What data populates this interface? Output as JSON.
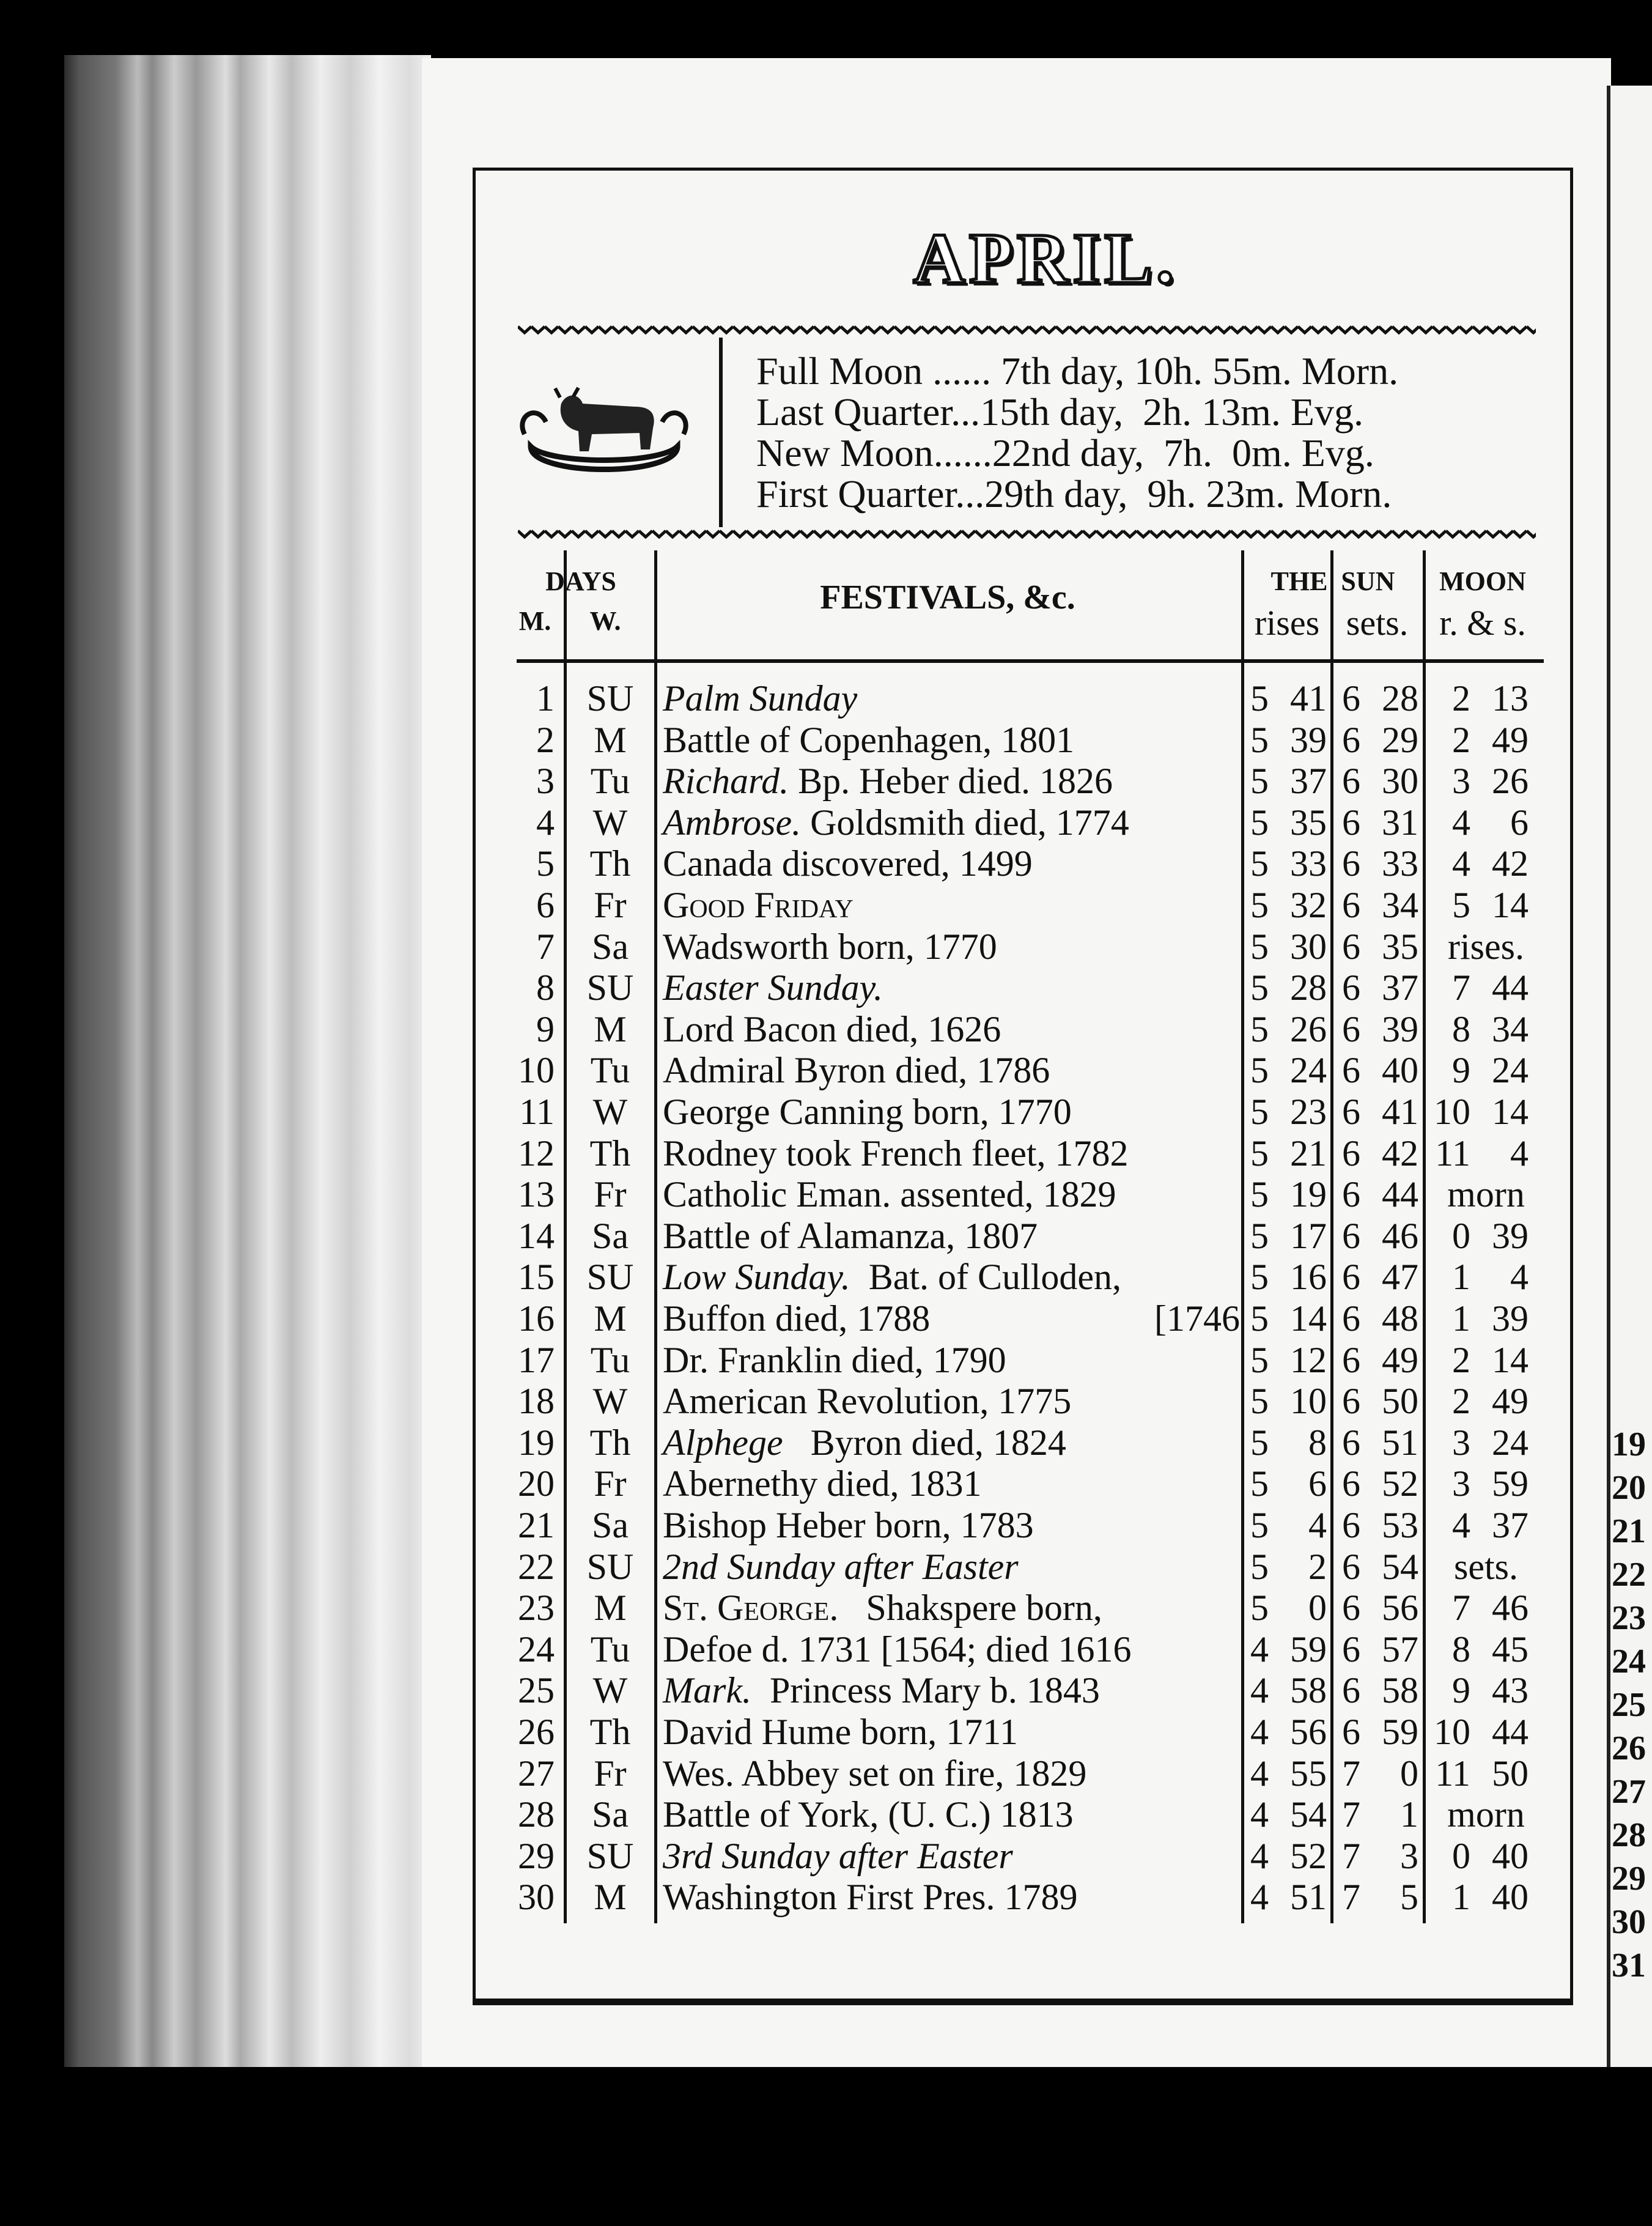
{
  "title": "APRIL.",
  "moon_phases": [
    "Full Moon ...... 7th day, 10h. 55m. Morn.",
    "Last Quarter...15th day,  2h. 13m. Evg.",
    "New Moon......22nd day,  7h.  0m. Evg.",
    "First Quarter...29th day,  9h. 23m. Morn."
  ],
  "headers": {
    "days": "DAYS",
    "m": "M.",
    "w": "W.",
    "festivals": "FESTIVALS, &c.",
    "the_sun": "THE  SUN",
    "rises": "rises",
    "sets": "sets.",
    "moon": "MOON",
    "moon_rs": "r. & s."
  },
  "rows": [
    {
      "m": "1",
      "w": "SU",
      "it": "Palm Sunday",
      "sc": "",
      "t": "",
      "rh": "5",
      "rm": "41",
      "sh": "6",
      "sm": "28",
      "mo": [
        "2",
        "13"
      ]
    },
    {
      "m": "2",
      "w": "M",
      "it": "",
      "sc": "",
      "t": "Battle of Copenhagen, 1801",
      "rh": "5",
      "rm": "39",
      "sh": "6",
      "sm": "29",
      "mo": [
        "2",
        "49"
      ]
    },
    {
      "m": "3",
      "w": "Tu",
      "it": "Richard.",
      "sc": "",
      "t": " Bp. Heber died. 1826",
      "rh": "5",
      "rm": "37",
      "sh": "6",
      "sm": "30",
      "mo": [
        "3",
        "26"
      ]
    },
    {
      "m": "4",
      "w": "W",
      "it": "Ambrose.",
      "sc": "",
      "t": " Goldsmith died, 1774",
      "rh": "5",
      "rm": "35",
      "sh": "6",
      "sm": "31",
      "mo": [
        "4",
        "6"
      ]
    },
    {
      "m": "5",
      "w": "Th",
      "it": "",
      "sc": "",
      "t": "Canada discovered, 1499",
      "rh": "5",
      "rm": "33",
      "sh": "6",
      "sm": "33",
      "mo": [
        "4",
        "42"
      ]
    },
    {
      "m": "6",
      "w": "Fr",
      "it": "",
      "sc": "Good Friday",
      "t": "",
      "rh": "5",
      "rm": "32",
      "sh": "6",
      "sm": "34",
      "mo": [
        "5",
        "14"
      ]
    },
    {
      "m": "7",
      "w": "Sa",
      "it": "",
      "sc": "",
      "t": "Wadsworth born, 1770",
      "rh": "5",
      "rm": "30",
      "sh": "6",
      "sm": "35",
      "mo": [
        "rises."
      ]
    },
    {
      "m": "8",
      "w": "SU",
      "it": "Easter Sunday.",
      "sc": "",
      "t": "",
      "rh": "5",
      "rm": "28",
      "sh": "6",
      "sm": "37",
      "mo": [
        "7",
        "44"
      ]
    },
    {
      "m": "9",
      "w": "M",
      "it": "",
      "sc": "",
      "t": "Lord Bacon died, 1626",
      "rh": "5",
      "rm": "26",
      "sh": "6",
      "sm": "39",
      "mo": [
        "8",
        "34"
      ]
    },
    {
      "m": "10",
      "w": "Tu",
      "it": "",
      "sc": "",
      "t": "Admiral Byron died, 1786",
      "rh": "5",
      "rm": "24",
      "sh": "6",
      "sm": "40",
      "mo": [
        "9",
        "24"
      ]
    },
    {
      "m": "11",
      "w": "W",
      "it": "",
      "sc": "",
      "t": "George Canning born, 1770",
      "rh": "5",
      "rm": "23",
      "sh": "6",
      "sm": "41",
      "mo": [
        "10",
        "14"
      ]
    },
    {
      "m": "12",
      "w": "Th",
      "it": "",
      "sc": "",
      "t": "Rodney took French fleet, 1782",
      "rh": "5",
      "rm": "21",
      "sh": "6",
      "sm": "42",
      "mo": [
        "11",
        "4"
      ]
    },
    {
      "m": "13",
      "w": "Fr",
      "it": "",
      "sc": "",
      "t": "Catholic Eman. assented, 1829",
      "rh": "5",
      "rm": "19",
      "sh": "6",
      "sm": "44",
      "mo": [
        "morn"
      ]
    },
    {
      "m": "14",
      "w": "Sa",
      "it": "",
      "sc": "",
      "t": "Battle of Alamanza, 1807",
      "rh": "5",
      "rm": "17",
      "sh": "6",
      "sm": "46",
      "mo": [
        "0",
        "39"
      ]
    },
    {
      "m": "15",
      "w": "SU",
      "it": "Low Sunday.",
      "sc": "",
      "t": "  Bat. of Culloden,",
      "rh": "5",
      "rm": "16",
      "sh": "6",
      "sm": "47",
      "mo": [
        "1",
        "4"
      ]
    },
    {
      "m": "16",
      "w": "M",
      "it": "",
      "sc": "",
      "t": "Buffon died, 1788",
      "t2": "[1746",
      "rh": "5",
      "rm": "14",
      "sh": "6",
      "sm": "48",
      "mo": [
        "1",
        "39"
      ]
    },
    {
      "m": "17",
      "w": "Tu",
      "it": "",
      "sc": "",
      "t": "Dr. Franklin died, 1790",
      "rh": "5",
      "rm": "12",
      "sh": "6",
      "sm": "49",
      "mo": [
        "2",
        "14"
      ]
    },
    {
      "m": "18",
      "w": "W",
      "it": "",
      "sc": "",
      "t": "American Revolution, 1775",
      "rh": "5",
      "rm": "10",
      "sh": "6",
      "sm": "50",
      "mo": [
        "2",
        "49"
      ]
    },
    {
      "m": "19",
      "w": "Th",
      "it": "Alphege",
      "sc": "",
      "t": "   Byron died, 1824",
      "rh": "5",
      "rm": "8",
      "sh": "6",
      "sm": "51",
      "mo": [
        "3",
        "24"
      ]
    },
    {
      "m": "20",
      "w": "Fr",
      "it": "",
      "sc": "",
      "t": "Abernethy died, 1831",
      "rh": "5",
      "rm": "6",
      "sh": "6",
      "sm": "52",
      "mo": [
        "3",
        "59"
      ]
    },
    {
      "m": "21",
      "w": "Sa",
      "it": "",
      "sc": "",
      "t": "Bishop Heber born, 1783",
      "rh": "5",
      "rm": "4",
      "sh": "6",
      "sm": "53",
      "mo": [
        "4",
        "37"
      ]
    },
    {
      "m": "22",
      "w": "SU",
      "it": "2nd Sunday after Easter",
      "sc": "",
      "t": "",
      "rh": "5",
      "rm": "2",
      "sh": "6",
      "sm": "54",
      "mo": [
        "sets."
      ]
    },
    {
      "m": "23",
      "w": "M",
      "it": "",
      "sc": "St. George.",
      "t": "   Shakspere born,",
      "rh": "5",
      "rm": "0",
      "sh": "6",
      "sm": "56",
      "mo": [
        "7",
        "46"
      ]
    },
    {
      "m": "24",
      "w": "Tu",
      "it": "",
      "sc": "",
      "t": "Defoe d. 1731 [1564; died 1616",
      "rh": "4",
      "rm": "59",
      "sh": "6",
      "sm": "57",
      "mo": [
        "8",
        "45"
      ]
    },
    {
      "m": "25",
      "w": "W",
      "it": "Mark.",
      "sc": "",
      "t": "  Princess Mary b. 1843",
      "rh": "4",
      "rm": "58",
      "sh": "6",
      "sm": "58",
      "mo": [
        "9",
        "43"
      ]
    },
    {
      "m": "26",
      "w": "Th",
      "it": "",
      "sc": "",
      "t": "David Hume born, 1711",
      "rh": "4",
      "rm": "56",
      "sh": "6",
      "sm": "59",
      "mo": [
        "10",
        "44"
      ]
    },
    {
      "m": "27",
      "w": "Fr",
      "it": "",
      "sc": "",
      "t": "Wes. Abbey set on fire, 1829",
      "rh": "4",
      "rm": "55",
      "sh": "7",
      "sm": "0",
      "mo": [
        "11",
        "50"
      ]
    },
    {
      "m": "28",
      "w": "Sa",
      "it": "",
      "sc": "",
      "t": "Battle of York, (U. C.) 1813",
      "rh": "4",
      "rm": "54",
      "sh": "7",
      "sm": "1",
      "mo": [
        "morn"
      ]
    },
    {
      "m": "29",
      "w": "SU",
      "it": "3rd Sunday after Easter",
      "sc": "",
      "t": "",
      "rh": "4",
      "rm": "52",
      "sh": "7",
      "sm": "3",
      "mo": [
        "0",
        "40"
      ]
    },
    {
      "m": "30",
      "w": "M",
      "it": "",
      "sc": "",
      "t": "Washington First Pres. 1789",
      "rh": "4",
      "rm": "51",
      "sh": "7",
      "sm": "5",
      "mo": [
        "1",
        "40"
      ]
    }
  ],
  "next_page_numbers": [
    "19",
    "20",
    "21",
    "22",
    "23",
    "24",
    "25",
    "26",
    "27",
    "28",
    "29",
    "30",
    "31"
  ],
  "emblem": "taurus-bull-icon"
}
